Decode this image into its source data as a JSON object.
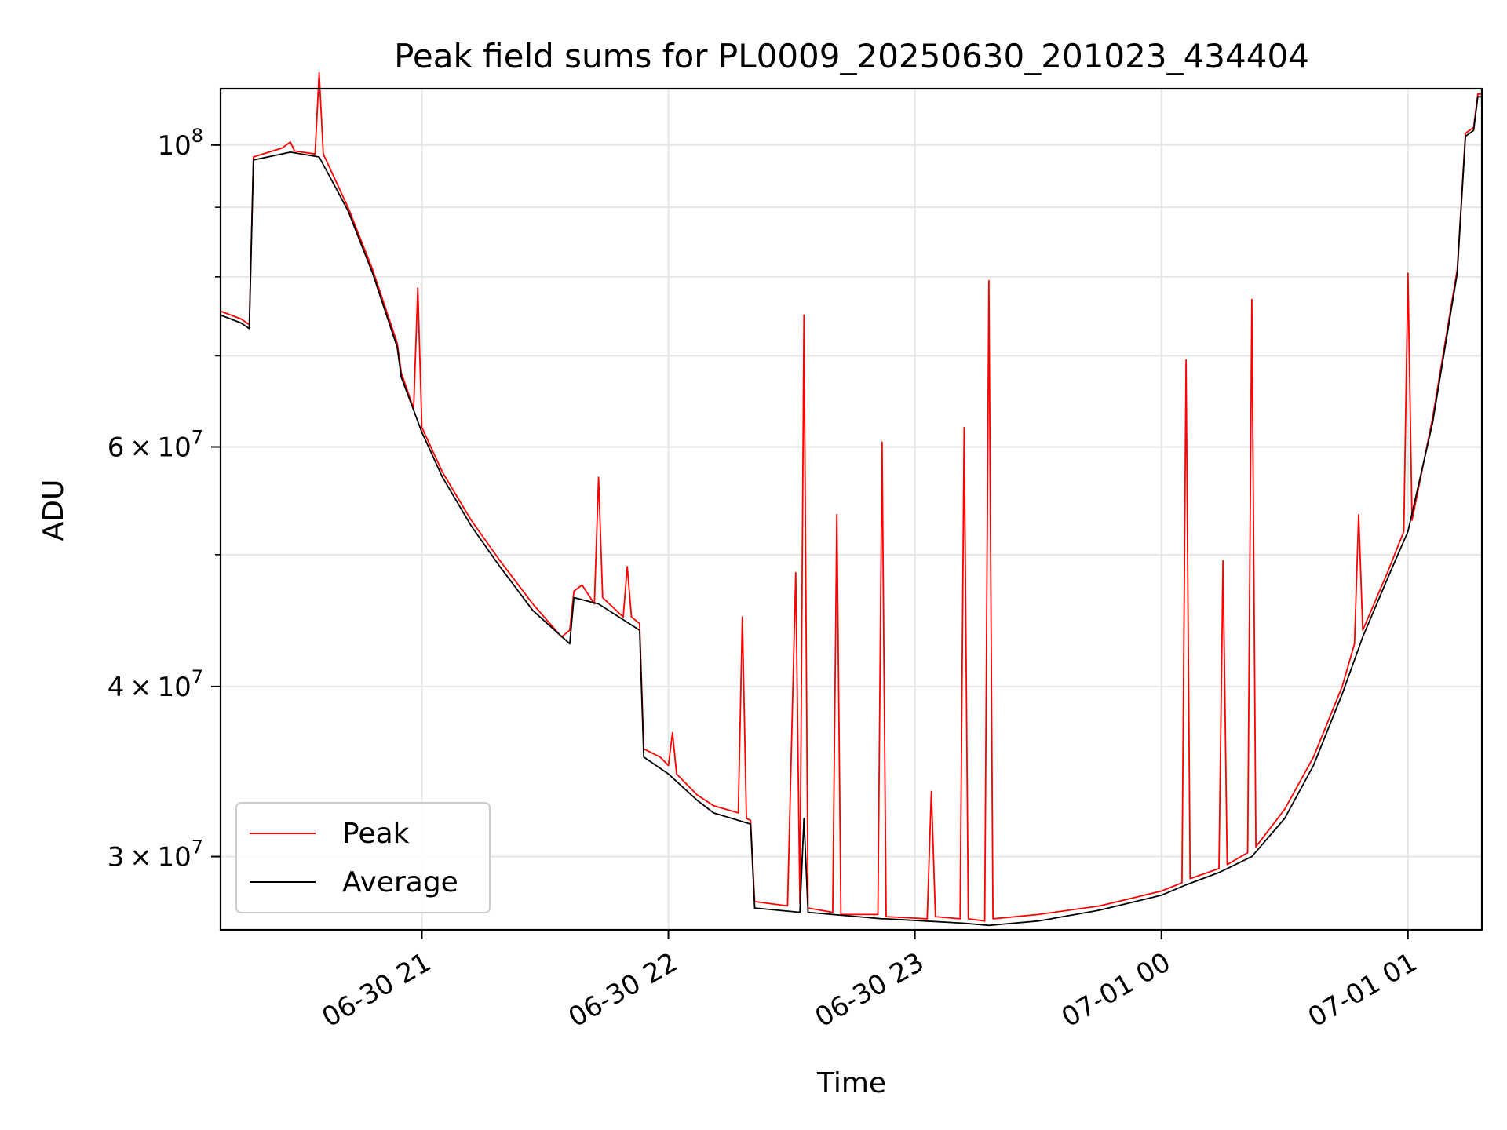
{
  "chart_data": {
    "type": "line",
    "title": "Peak field sums for PL0009_20250630_201023_434404",
    "xlabel": "Time",
    "ylabel": "ADU",
    "yscale": "log",
    "xlim": [
      "2025-06-30 20:11",
      "2025-07-01 01:18"
    ],
    "ylim": [
      26500000,
      110000000
    ],
    "x_ticks": [
      {
        "value": "2025-06-30 21:00",
        "label": "06-30 21"
      },
      {
        "value": "2025-06-30 22:00",
        "label": "06-30 22"
      },
      {
        "value": "2025-06-30 23:00",
        "label": "06-30 23"
      },
      {
        "value": "2025-07-01 00:00",
        "label": "07-01 00"
      },
      {
        "value": "2025-07-01 01:00",
        "label": "07-01 01"
      }
    ],
    "y_ticks": [
      {
        "value": 100000000,
        "base": "10",
        "exp": "8"
      },
      {
        "value": 60000000,
        "mantissa": "6",
        "base": "10",
        "exp": "7"
      },
      {
        "value": 40000000,
        "mantissa": "4",
        "base": "10",
        "exp": "7"
      },
      {
        "value": 30000000,
        "mantissa": "3",
        "base": "10",
        "exp": "7"
      }
    ],
    "grid": true,
    "legend": {
      "position": "lower-left"
    },
    "series": [
      {
        "name": "Peak",
        "color": "#ff0000",
        "points": [
          [
            "2025-06-30 20:11",
            75500000
          ],
          [
            "2025-06-30 20:16",
            74500000
          ],
          [
            "2025-06-30 20:18",
            73800000
          ],
          [
            "2025-06-30 20:19",
            98000000
          ],
          [
            "2025-06-30 20:26",
            99500000
          ],
          [
            "2025-06-30 20:28",
            100500000
          ],
          [
            "2025-06-30 20:29",
            99000000
          ],
          [
            "2025-06-30 20:34",
            98500000
          ],
          [
            "2025-06-30 20:35",
            113000000
          ],
          [
            "2025-06-30 20:36",
            98500000
          ],
          [
            "2025-06-30 20:42",
            90000000
          ],
          [
            "2025-06-30 20:48",
            81000000
          ],
          [
            "2025-06-30 20:54",
            71500000
          ],
          [
            "2025-06-30 20:55",
            68000000
          ],
          [
            "2025-06-30 20:58",
            64000000
          ],
          [
            "2025-06-30 20:59",
            78500000
          ],
          [
            "2025-06-30 21:00",
            62000000
          ],
          [
            "2025-06-30 21:05",
            57500000
          ],
          [
            "2025-06-30 21:12",
            53000000
          ],
          [
            "2025-06-30 21:19",
            49500000
          ],
          [
            "2025-06-30 21:27",
            46000000
          ],
          [
            "2025-06-30 21:34",
            43500000
          ],
          [
            "2025-06-30 21:36",
            44000000
          ],
          [
            "2025-06-30 21:37",
            47000000
          ],
          [
            "2025-06-30 21:39",
            47500000
          ],
          [
            "2025-06-30 21:42",
            46000000
          ],
          [
            "2025-06-30 21:43",
            57000000
          ],
          [
            "2025-06-30 21:44",
            46500000
          ],
          [
            "2025-06-30 21:49",
            45000000
          ],
          [
            "2025-06-30 21:50",
            49000000
          ],
          [
            "2025-06-30 21:51",
            45000000
          ],
          [
            "2025-06-30 21:53",
            44500000
          ],
          [
            "2025-06-30 21:54",
            36000000
          ],
          [
            "2025-06-30 21:58",
            35500000
          ],
          [
            "2025-06-30 22:00",
            35000000
          ],
          [
            "2025-06-30 22:01",
            37000000
          ],
          [
            "2025-06-30 22:02",
            34500000
          ],
          [
            "2025-06-30 22:07",
            33300000
          ],
          [
            "2025-06-30 22:11",
            32700000
          ],
          [
            "2025-06-30 22:17",
            32300000
          ],
          [
            "2025-06-30 22:18",
            45000000
          ],
          [
            "2025-06-30 22:19",
            32000000
          ],
          [
            "2025-06-30 22:20",
            31900000
          ],
          [
            "2025-06-30 22:21",
            27800000
          ],
          [
            "2025-06-30 22:29",
            27600000
          ],
          [
            "2025-06-30 22:31",
            48500000
          ],
          [
            "2025-06-30 22:32",
            27700000
          ],
          [
            "2025-06-30 22:33",
            75000000
          ],
          [
            "2025-06-30 22:34",
            27500000
          ],
          [
            "2025-06-30 22:40",
            27300000
          ],
          [
            "2025-06-30 22:41",
            53500000
          ],
          [
            "2025-06-30 22:42",
            27200000
          ],
          [
            "2025-06-30 22:51",
            27200000
          ],
          [
            "2025-06-30 22:52",
            60500000
          ],
          [
            "2025-06-30 22:53",
            27100000
          ],
          [
            "2025-06-30 23:03",
            27000000
          ],
          [
            "2025-06-30 23:04",
            33500000
          ],
          [
            "2025-06-30 23:05",
            27100000
          ],
          [
            "2025-06-30 23:11",
            27000000
          ],
          [
            "2025-06-30 23:12",
            62000000
          ],
          [
            "2025-06-30 23:13",
            27000000
          ],
          [
            "2025-06-30 23:17",
            26900000
          ],
          [
            "2025-06-30 23:18",
            79500000
          ],
          [
            "2025-06-30 23:19",
            27000000
          ],
          [
            "2025-06-30 23:30",
            27200000
          ],
          [
            "2025-06-30 23:45",
            27600000
          ],
          [
            "2025-07-01 00:00",
            28300000
          ],
          [
            "2025-07-01 00:05",
            28700000
          ],
          [
            "2025-07-01 00:06",
            69500000
          ],
          [
            "2025-07-01 00:07",
            28900000
          ],
          [
            "2025-07-01 00:14",
            29400000
          ],
          [
            "2025-07-01 00:15",
            49500000
          ],
          [
            "2025-07-01 00:16",
            29600000
          ],
          [
            "2025-07-01 00:21",
            30200000
          ],
          [
            "2025-07-01 00:22",
            77000000
          ],
          [
            "2025-07-01 00:23",
            30500000
          ],
          [
            "2025-07-01 00:30",
            32500000
          ],
          [
            "2025-07-01 00:37",
            35500000
          ],
          [
            "2025-07-01 00:44",
            40000000
          ],
          [
            "2025-07-01 00:47",
            43000000
          ],
          [
            "2025-07-01 00:48",
            53500000
          ],
          [
            "2025-07-01 00:49",
            44000000
          ],
          [
            "2025-07-01 00:55",
            48500000
          ],
          [
            "2025-07-01 00:59",
            52000000
          ],
          [
            "2025-07-01 01:00",
            80500000
          ],
          [
            "2025-07-01 01:01",
            53000000
          ],
          [
            "2025-07-01 01:06",
            63000000
          ],
          [
            "2025-07-01 01:12",
            81000000
          ],
          [
            "2025-07-01 01:14",
            102000000
          ],
          [
            "2025-07-01 01:16",
            103000000
          ],
          [
            "2025-07-01 01:17",
            109000000
          ],
          [
            "2025-07-01 01:18",
            109000000
          ]
        ]
      },
      {
        "name": "Average",
        "color": "#000000",
        "points": [
          [
            "2025-06-30 20:11",
            75000000
          ],
          [
            "2025-06-30 20:16",
            74000000
          ],
          [
            "2025-06-30 20:18",
            73300000
          ],
          [
            "2025-06-30 20:19",
            97500000
          ],
          [
            "2025-06-30 20:28",
            98800000
          ],
          [
            "2025-06-30 20:35",
            98000000
          ],
          [
            "2025-06-30 20:42",
            89500000
          ],
          [
            "2025-06-30 20:48",
            80500000
          ],
          [
            "2025-06-30 20:54",
            71000000
          ],
          [
            "2025-06-30 20:55",
            67500000
          ],
          [
            "2025-06-30 21:00",
            61500000
          ],
          [
            "2025-06-30 21:05",
            57000000
          ],
          [
            "2025-06-30 21:12",
            52500000
          ],
          [
            "2025-06-30 21:19",
            49000000
          ],
          [
            "2025-06-30 21:27",
            45500000
          ],
          [
            "2025-06-30 21:36",
            43000000
          ],
          [
            "2025-06-30 21:37",
            46500000
          ],
          [
            "2025-06-30 21:43",
            46000000
          ],
          [
            "2025-06-30 21:53",
            44000000
          ],
          [
            "2025-06-30 21:54",
            35500000
          ],
          [
            "2025-06-30 22:00",
            34500000
          ],
          [
            "2025-06-30 22:07",
            33000000
          ],
          [
            "2025-06-30 22:11",
            32300000
          ],
          [
            "2025-06-30 22:20",
            31700000
          ],
          [
            "2025-06-30 22:21",
            27500000
          ],
          [
            "2025-06-30 22:32",
            27300000
          ],
          [
            "2025-06-30 22:33",
            32000000
          ],
          [
            "2025-06-30 22:34",
            27300000
          ],
          [
            "2025-06-30 22:52",
            27000000
          ],
          [
            "2025-06-30 22:53",
            27000000
          ],
          [
            "2025-06-30 23:12",
            26800000
          ],
          [
            "2025-06-30 23:18",
            26700000
          ],
          [
            "2025-06-30 23:30",
            26900000
          ],
          [
            "2025-06-30 23:45",
            27400000
          ],
          [
            "2025-07-01 00:00",
            28100000
          ],
          [
            "2025-07-01 00:06",
            28600000
          ],
          [
            "2025-07-01 00:14",
            29200000
          ],
          [
            "2025-07-01 00:22",
            30000000
          ],
          [
            "2025-07-01 00:30",
            32000000
          ],
          [
            "2025-07-01 00:37",
            35000000
          ],
          [
            "2025-07-01 00:44",
            39500000
          ],
          [
            "2025-07-01 00:49",
            43500000
          ],
          [
            "2025-07-01 00:55",
            48000000
          ],
          [
            "2025-07-01 01:00",
            52000000
          ],
          [
            "2025-07-01 01:06",
            62500000
          ],
          [
            "2025-07-01 01:12",
            80500000
          ],
          [
            "2025-07-01 01:14",
            101500000
          ],
          [
            "2025-07-01 01:16",
            102500000
          ],
          [
            "2025-07-01 01:17",
            108500000
          ],
          [
            "2025-07-01 01:18",
            108500000
          ]
        ]
      }
    ]
  }
}
